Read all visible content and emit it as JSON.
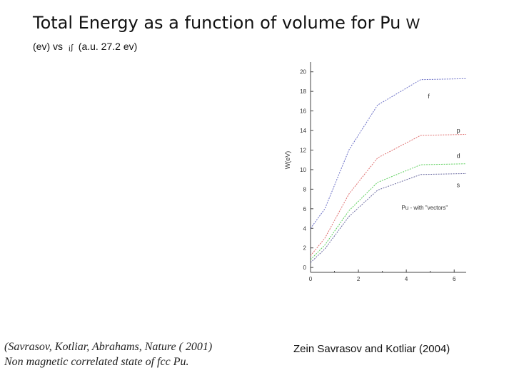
{
  "slide": {
    "title": "Total Energy as a function of volume for Pu",
    "title_symbol": "W",
    "subtitle_prefix": "(ev) vs",
    "subtitle_glyph": "¡∫",
    "subtitle_suffix": "(a.u. 27.2 ev)",
    "citation_line1": "(Savrasov, Kotliar, Abrahams,  Nature ( 2001)",
    "citation_line2": "Non magnetic correlated state of fcc Pu.",
    "credit": "Zein Savrasov and Kotliar (2004)"
  },
  "chart_data": {
    "type": "line",
    "title": "",
    "xlabel": "",
    "ylabel": "W(eV)",
    "xlim": [
      0,
      6.5
    ],
    "ylim": [
      -0.5,
      21
    ],
    "xticks": [
      0,
      2,
      4,
      6
    ],
    "yticks": [
      0,
      2,
      4,
      6,
      8,
      10,
      12,
      14,
      16,
      18,
      20
    ],
    "annotation": "Pu - with \"vectors\"",
    "series": [
      {
        "name": "f",
        "color": "#6a6fc6",
        "x": [
          0,
          0.6,
          1.6,
          2.8,
          4.6,
          6.5
        ],
        "y": [
          4.0,
          6.0,
          12.0,
          16.6,
          19.2,
          19.3
        ]
      },
      {
        "name": "p",
        "color": "#e07070",
        "x": [
          0,
          0.6,
          1.6,
          2.8,
          4.6,
          6.5
        ],
        "y": [
          1.2,
          3.0,
          7.5,
          11.2,
          13.5,
          13.6
        ]
      },
      {
        "name": "d",
        "color": "#5ed05e",
        "x": [
          0,
          0.6,
          1.6,
          2.8,
          4.6,
          6.5
        ],
        "y": [
          0.8,
          2.3,
          5.8,
          8.7,
          10.5,
          10.6
        ]
      },
      {
        "name": "s",
        "color": "#6a6aa0",
        "x": [
          0,
          0.6,
          1.6,
          2.8,
          4.6,
          6.5
        ],
        "y": [
          0.5,
          1.9,
          5.2,
          7.9,
          9.5,
          9.6
        ]
      }
    ],
    "legend_positions": [
      {
        "name": "f",
        "x": 4.9,
        "y": 17.3
      },
      {
        "name": "p",
        "x": 6.1,
        "y": 13.8
      },
      {
        "name": "d",
        "x": 6.1,
        "y": 11.2
      },
      {
        "name": "s",
        "x": 6.1,
        "y": 8.2
      }
    ],
    "annotation_pos": {
      "x": 3.8,
      "y": 5.9
    }
  }
}
